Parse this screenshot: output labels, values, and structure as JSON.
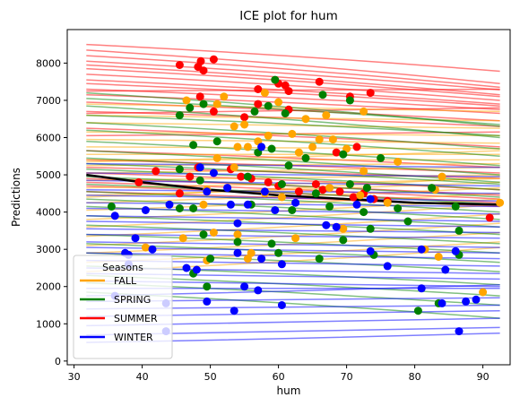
{
  "chart_data": {
    "type": "line",
    "title": "ICE plot for hum",
    "xlabel": "hum",
    "ylabel": "Predictions",
    "xlim": [
      29,
      94
    ],
    "ylim": [
      -100,
      8900
    ],
    "xticks": [
      30,
      40,
      50,
      60,
      70,
      80,
      90
    ],
    "yticks": [
      0,
      1000,
      2000,
      3000,
      4000,
      5000,
      6000,
      7000,
      8000
    ],
    "x_range_lines": [
      31.8,
      92.5
    ],
    "grid": false,
    "legend": {
      "title": "Seasons",
      "placement": "lower-left",
      "entries": [
        {
          "label": "FALL",
          "color": "#ffa500"
        },
        {
          "label": "SPRING",
          "color": "#008000"
        },
        {
          "label": "SUMMER",
          "color": "#ff0000"
        },
        {
          "label": "WINTER",
          "color": "#0000ff"
        }
      ]
    },
    "series": [
      {
        "season": "SUMMER",
        "color": "#ff0000",
        "lines": [
          [
            8500,
            7780
          ],
          [
            8350,
            7450
          ],
          [
            8200,
            7350
          ],
          [
            8050,
            7280
          ],
          [
            7950,
            7150
          ],
          [
            7850,
            7100
          ],
          [
            7700,
            7000
          ],
          [
            7550,
            6900
          ],
          [
            7450,
            6850
          ],
          [
            7300,
            6750
          ],
          [
            7150,
            6650
          ],
          [
            6950,
            6450
          ],
          [
            6700,
            6300
          ],
          [
            6250,
            5750
          ],
          [
            5650,
            5200
          ],
          [
            5400,
            5050
          ],
          [
            5200,
            4900
          ],
          [
            5050,
            4600
          ],
          [
            4900,
            4450
          ],
          [
            4800,
            4350
          ],
          [
            4700,
            4250
          ],
          [
            4550,
            4150
          ],
          [
            7250,
            7300
          ],
          [
            6650,
            6800
          ],
          [
            6050,
            6150
          ]
        ]
      },
      {
        "season": "FALL",
        "color": "#ffa500",
        "lines": [
          [
            6900,
            6700
          ],
          [
            6600,
            6450
          ],
          [
            6400,
            6250
          ],
          [
            6150,
            6050
          ],
          [
            5950,
            5850
          ],
          [
            5750,
            5700
          ],
          [
            5550,
            5550
          ],
          [
            5400,
            5400
          ],
          [
            5250,
            5300
          ],
          [
            5050,
            5200
          ],
          [
            4850,
            5000
          ],
          [
            4650,
            4900
          ],
          [
            4450,
            4800
          ],
          [
            4250,
            4650
          ],
          [
            4050,
            4500
          ],
          [
            3800,
            4350
          ],
          [
            3600,
            4200
          ],
          [
            3350,
            3950
          ],
          [
            3100,
            3700
          ],
          [
            2900,
            3450
          ],
          [
            2650,
            3200
          ],
          [
            2400,
            3050
          ],
          [
            5350,
            5650
          ],
          [
            4400,
            4950
          ]
        ]
      },
      {
        "season": "SPRING",
        "color": "#008000",
        "lines": [
          [
            7200,
            6300
          ],
          [
            7050,
            6350
          ],
          [
            6850,
            6000
          ],
          [
            6600,
            6050
          ],
          [
            6400,
            5700
          ],
          [
            6200,
            5500
          ],
          [
            5900,
            5250
          ],
          [
            5650,
            5000
          ],
          [
            5450,
            4800
          ],
          [
            5300,
            4750
          ],
          [
            5150,
            4600
          ],
          [
            4950,
            4400
          ],
          [
            4750,
            4200
          ],
          [
            4550,
            4000
          ],
          [
            4350,
            3800
          ],
          [
            4150,
            3600
          ],
          [
            3900,
            3400
          ],
          [
            3650,
            3150
          ],
          [
            3400,
            2900
          ],
          [
            3150,
            2650
          ],
          [
            2900,
            2400
          ],
          [
            2550,
            2050
          ],
          [
            2300,
            1750
          ],
          [
            2100,
            1500
          ],
          [
            1850,
            1150
          ]
        ]
      },
      {
        "season": "WINTER",
        "color": "#0000ff",
        "lines": [
          [
            5300,
            5200
          ],
          [
            5050,
            4950
          ],
          [
            4850,
            4700
          ],
          [
            4600,
            4500
          ],
          [
            4450,
            4300
          ],
          [
            4250,
            4150
          ],
          [
            4100,
            3950
          ],
          [
            3900,
            3750
          ],
          [
            3750,
            3600
          ],
          [
            3550,
            3450
          ],
          [
            3400,
            3300
          ],
          [
            3200,
            3050
          ],
          [
            3050,
            2900
          ],
          [
            2900,
            2750
          ],
          [
            2700,
            2550
          ],
          [
            2500,
            2350
          ],
          [
            2350,
            2200
          ],
          [
            2150,
            2000
          ],
          [
            1950,
            1950
          ],
          [
            1750,
            2050
          ],
          [
            1600,
            1700
          ],
          [
            1400,
            1500
          ],
          [
            1200,
            1350
          ],
          [
            950,
            1150
          ],
          [
            700,
            900
          ],
          [
            500,
            750
          ]
        ]
      }
    ],
    "average_line": {
      "color": "#000000",
      "points": [
        [
          31.8,
          5000
        ],
        [
          40,
          4800
        ],
        [
          50,
          4600
        ],
        [
          60,
          4450
        ],
        [
          70,
          4350
        ],
        [
          80,
          4250
        ],
        [
          92.5,
          4200
        ]
      ]
    },
    "scatter": [
      {
        "color": "#ff0000",
        "points": [
          [
            45.5,
            7950
          ],
          [
            48.2,
            7900
          ],
          [
            48.6,
            8050
          ],
          [
            49.0,
            7800
          ],
          [
            50.5,
            8100
          ],
          [
            57.0,
            7300
          ],
          [
            60.0,
            7450
          ],
          [
            61.0,
            7400
          ],
          [
            61.5,
            7250
          ],
          [
            66.0,
            7500
          ],
          [
            70.5,
            7100
          ],
          [
            73.5,
            7200
          ],
          [
            48.5,
            7100
          ],
          [
            50.5,
            6700
          ],
          [
            57.0,
            6900
          ],
          [
            61.5,
            6750
          ],
          [
            55.0,
            6550
          ],
          [
            68.5,
            5600
          ],
          [
            71.5,
            5750
          ],
          [
            47.0,
            4950
          ],
          [
            48.2,
            5200
          ],
          [
            53.0,
            5150
          ],
          [
            54.5,
            4950
          ],
          [
            56.0,
            4900
          ],
          [
            58.5,
            4800
          ],
          [
            60.0,
            4700
          ],
          [
            63.0,
            4550
          ],
          [
            65.5,
            4750
          ],
          [
            66.5,
            4600
          ],
          [
            69.0,
            4550
          ],
          [
            71.0,
            4400
          ],
          [
            72.5,
            4500
          ],
          [
            74.0,
            4350
          ],
          [
            76.0,
            4300
          ],
          [
            42.0,
            5100
          ],
          [
            39.5,
            4800
          ],
          [
            45.5,
            4500
          ],
          [
            91.0,
            3850
          ]
        ]
      },
      {
        "color": "#ffa500",
        "points": [
          [
            46.5,
            7000
          ],
          [
            51.0,
            6900
          ],
          [
            52.0,
            7100
          ],
          [
            58.0,
            7200
          ],
          [
            60.0,
            6950
          ],
          [
            64.0,
            6500
          ],
          [
            67.0,
            6600
          ],
          [
            72.5,
            6700
          ],
          [
            53.5,
            6300
          ],
          [
            55.0,
            6350
          ],
          [
            58.5,
            6050
          ],
          [
            62.0,
            6100
          ],
          [
            65.0,
            5750
          ],
          [
            66.0,
            5950
          ],
          [
            68.0,
            5950
          ],
          [
            70.0,
            5700
          ],
          [
            54.0,
            5750
          ],
          [
            55.5,
            5750
          ],
          [
            57.0,
            5900
          ],
          [
            63.0,
            5600
          ],
          [
            72.5,
            5100
          ],
          [
            77.5,
            5350
          ],
          [
            84.0,
            4950
          ],
          [
            51.0,
            5450
          ],
          [
            53.5,
            5200
          ],
          [
            49.5,
            4600
          ],
          [
            58.0,
            4500
          ],
          [
            60.5,
            4400
          ],
          [
            67.5,
            4650
          ],
          [
            72.0,
            4450
          ],
          [
            76.0,
            4250
          ],
          [
            83.0,
            4600
          ],
          [
            92.5,
            4250
          ],
          [
            49.0,
            4200
          ],
          [
            46.0,
            3300
          ],
          [
            49.5,
            2700
          ],
          [
            50.5,
            3450
          ],
          [
            54.0,
            3400
          ],
          [
            55.5,
            2750
          ],
          [
            56.0,
            2900
          ],
          [
            62.5,
            3300
          ],
          [
            69.5,
            3550
          ],
          [
            81.5,
            3000
          ],
          [
            83.5,
            2800
          ],
          [
            90.0,
            1850
          ],
          [
            40.5,
            3050
          ]
        ]
      },
      {
        "color": "#008000",
        "points": [
          [
            45.5,
            6600
          ],
          [
            47.0,
            6800
          ],
          [
            49.0,
            6900
          ],
          [
            56.5,
            6700
          ],
          [
            58.5,
            6850
          ],
          [
            59.5,
            7550
          ],
          [
            61.0,
            6650
          ],
          [
            66.5,
            7150
          ],
          [
            70.5,
            7000
          ],
          [
            47.5,
            5800
          ],
          [
            51.0,
            5900
          ],
          [
            57.0,
            5600
          ],
          [
            59.0,
            5700
          ],
          [
            61.5,
            5250
          ],
          [
            64.0,
            5450
          ],
          [
            69.5,
            5550
          ],
          [
            75.0,
            5450
          ],
          [
            45.5,
            5150
          ],
          [
            48.5,
            4850
          ],
          [
            55.5,
            4950
          ],
          [
            60.5,
            4750
          ],
          [
            65.5,
            4500
          ],
          [
            70.5,
            4750
          ],
          [
            73.0,
            4650
          ],
          [
            82.5,
            4650
          ],
          [
            35.5,
            4150
          ],
          [
            45.5,
            4100
          ],
          [
            47.5,
            4100
          ],
          [
            56.0,
            4200
          ],
          [
            62.0,
            4050
          ],
          [
            67.5,
            4150
          ],
          [
            72.5,
            4000
          ],
          [
            77.5,
            4100
          ],
          [
            86.0,
            4150
          ],
          [
            49.0,
            3400
          ],
          [
            54.0,
            3200
          ],
          [
            59.0,
            3150
          ],
          [
            69.5,
            3250
          ],
          [
            73.5,
            3550
          ],
          [
            50.0,
            2750
          ],
          [
            60.0,
            2900
          ],
          [
            66.0,
            2750
          ],
          [
            79.0,
            3750
          ],
          [
            86.5,
            3500
          ],
          [
            47.5,
            2350
          ],
          [
            49.5,
            2000
          ],
          [
            80.5,
            1350
          ],
          [
            83.5,
            1550
          ],
          [
            86.5,
            2850
          ],
          [
            74.0,
            2850
          ]
        ]
      },
      {
        "color": "#0000ff",
        "points": [
          [
            48.5,
            5200
          ],
          [
            50.5,
            5050
          ],
          [
            52.5,
            4650
          ],
          [
            57.5,
            5750
          ],
          [
            49.5,
            4550
          ],
          [
            44.0,
            4200
          ],
          [
            53.0,
            4200
          ],
          [
            54.0,
            3700
          ],
          [
            55.5,
            4200
          ],
          [
            58.0,
            4550
          ],
          [
            59.5,
            4050
          ],
          [
            62.5,
            4250
          ],
          [
            67.0,
            3650
          ],
          [
            68.5,
            3600
          ],
          [
            71.5,
            4200
          ],
          [
            73.5,
            4350
          ],
          [
            81.0,
            3000
          ],
          [
            36.0,
            3900
          ],
          [
            40.5,
            4050
          ],
          [
            39.0,
            3300
          ],
          [
            37.5,
            2900
          ],
          [
            38.0,
            2850
          ],
          [
            38.0,
            2600
          ],
          [
            41.5,
            3000
          ],
          [
            46.5,
            2500
          ],
          [
            48.0,
            2450
          ],
          [
            54.0,
            2900
          ],
          [
            57.5,
            2750
          ],
          [
            60.5,
            2600
          ],
          [
            73.5,
            2950
          ],
          [
            76.0,
            2550
          ],
          [
            84.5,
            2450
          ],
          [
            86.0,
            2950
          ],
          [
            43.5,
            1550
          ],
          [
            49.5,
            1600
          ],
          [
            53.5,
            1350
          ],
          [
            55.0,
            2000
          ],
          [
            57.0,
            1900
          ],
          [
            60.5,
            1500
          ],
          [
            81.0,
            1950
          ],
          [
            84.0,
            1550
          ],
          [
            87.5,
            1600
          ],
          [
            89.0,
            1650
          ],
          [
            86.5,
            800
          ],
          [
            43.5,
            800
          ],
          [
            36.0,
            1750
          ]
        ]
      }
    ]
  }
}
